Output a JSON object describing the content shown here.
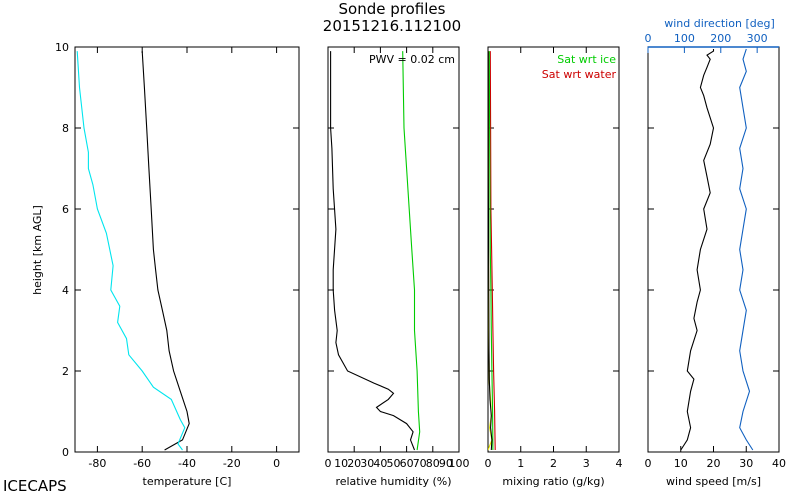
{
  "figure": {
    "title_line1": "Sonde profiles",
    "title_line2": "20151216.112100",
    "footer_label": "ICECAPS",
    "shared_ylabel": "height [km AGL]"
  },
  "chart_data": [
    {
      "type": "line",
      "xlabel": "temperature [C]",
      "ylabel": "height [km AGL]",
      "xlim": [
        -90,
        10
      ],
      "ylim": [
        0,
        10
      ],
      "xticks": [
        -80,
        -60,
        -40,
        -20,
        0
      ],
      "xtick_labels": [
        "-80",
        "-60",
        "-40",
        "-20",
        "0"
      ],
      "yticks": [
        0,
        2,
        4,
        6,
        8,
        10
      ],
      "ytick_labels": [
        "0",
        "2",
        "4",
        "6",
        "8",
        "10"
      ],
      "series": [
        {
          "color": "#000000",
          "x": [
            -50,
            -42,
            -39,
            -40,
            -43,
            -46,
            -48,
            -49,
            -51,
            -53,
            -54,
            -55,
            -56,
            -57,
            -58,
            -59,
            -60
          ],
          "y": [
            0.05,
            0.3,
            0.7,
            1.0,
            1.5,
            2.0,
            2.5,
            3.0,
            3.5,
            4.0,
            4.5,
            5.0,
            6.0,
            7.0,
            8.0,
            9.0,
            9.9
          ]
        },
        {
          "color": "#00e5ee",
          "x": [
            -42,
            -44,
            -41,
            -43,
            -47,
            -55,
            -60,
            -66,
            -67,
            -71,
            -70,
            -74,
            -73,
            -76,
            -80,
            -82,
            -84,
            -84,
            -86,
            -88,
            -89
          ],
          "y": [
            0.05,
            0.2,
            0.6,
            0.8,
            1.3,
            1.6,
            2.0,
            2.4,
            2.8,
            3.2,
            3.6,
            4.0,
            4.6,
            5.4,
            6.0,
            6.6,
            7.0,
            7.4,
            8.0,
            9.0,
            9.9
          ]
        }
      ]
    },
    {
      "type": "line",
      "xlabel": "relative humidity (%)",
      "xlim": [
        0,
        100
      ],
      "ylim": [
        0,
        10
      ],
      "xticks": [
        0,
        20,
        40,
        60,
        80,
        100
      ],
      "xtick_labels": [
        "0",
        "20",
        "40",
        "60",
        "80",
        "100"
      ],
      "x_minor_ticks": [
        10,
        30,
        50,
        70,
        90
      ],
      "minor_tick_labels": [
        "10",
        "30",
        "50",
        "70",
        "90"
      ],
      "yticks": [
        0,
        2,
        4,
        6,
        8,
        10
      ],
      "annotation": "PWV = 0.02 cm",
      "series": [
        {
          "color": "#000000",
          "x": [
            66,
            63,
            65,
            60,
            50,
            40,
            37,
            46,
            50,
            46,
            35,
            15,
            8,
            6,
            7,
            5,
            4,
            4,
            6,
            4,
            3,
            2,
            2,
            2
          ],
          "y": [
            0.05,
            0.3,
            0.5,
            0.7,
            0.9,
            1.0,
            1.1,
            1.3,
            1.45,
            1.55,
            1.7,
            2.0,
            2.4,
            2.7,
            3.0,
            3.5,
            4.0,
            4.5,
            5.5,
            6.5,
            7.5,
            8.0,
            9.0,
            9.9
          ]
        },
        {
          "color": "#00cc00",
          "x": [
            68,
            70,
            69,
            68,
            66,
            66,
            64,
            62,
            60,
            58,
            57
          ],
          "y": [
            0.05,
            0.5,
            1.0,
            2.0,
            3.0,
            4.0,
            5.0,
            6.0,
            7.0,
            8.0,
            9.9
          ]
        }
      ]
    },
    {
      "type": "line",
      "xlabel": "mixing ratio (g/kg)",
      "xlim": [
        0,
        4
      ],
      "ylim": [
        0,
        10
      ],
      "xticks": [
        0,
        1,
        2,
        3,
        4
      ],
      "xtick_labels": [
        "0",
        "1",
        "2",
        "3",
        "4"
      ],
      "yticks": [
        0,
        2,
        4,
        6,
        8,
        10
      ],
      "legend": [
        "Sat wrt ice",
        "Sat wrt water"
      ],
      "legend_colors": [
        "#00cc00",
        "#cc0000"
      ],
      "legend_position": "top-right",
      "series": [
        {
          "color": "#cc0000",
          "x": [
            0.22,
            0.2,
            0.17,
            0.15,
            0.13,
            0.11,
            0.09,
            0.08,
            0.07
          ],
          "y": [
            0.05,
            1.0,
            2.0,
            3.0,
            4.0,
            5.0,
            6.0,
            8.0,
            9.9
          ]
        },
        {
          "color": "#00cc00",
          "x": [
            0.15,
            0.14,
            0.12,
            0.1,
            0.09,
            0.07,
            0.06,
            0.05,
            0.04
          ],
          "y": [
            0.05,
            1.0,
            2.0,
            3.0,
            4.0,
            5.0,
            6.0,
            8.0,
            9.9
          ]
        },
        {
          "color": "#e5e500",
          "x": [
            0.0,
            0.12,
            0.05,
            0.1,
            0.08,
            0.04,
            0.02,
            0.01
          ],
          "y": [
            0.05,
            0.3,
            0.6,
            0.9,
            1.3,
            1.7,
            3.0,
            9.9
          ]
        },
        {
          "color": "#000000",
          "x": [
            0.1,
            0.12,
            0.08,
            0.1,
            0.06,
            0.04,
            0.03,
            0.02,
            0.01,
            0.01
          ],
          "y": [
            0.05,
            0.3,
            0.6,
            0.9,
            1.3,
            1.8,
            2.5,
            4.0,
            7.0,
            9.9
          ]
        }
      ]
    },
    {
      "type": "line",
      "xlabel": "wind speed [m/s]",
      "xlim": [
        0,
        40
      ],
      "ylim": [
        0,
        10
      ],
      "xticks": [
        0,
        10,
        20,
        30,
        40
      ],
      "xtick_labels": [
        "0",
        "10",
        "20",
        "30",
        "40"
      ],
      "yticks": [
        0,
        2,
        4,
        6,
        8,
        10
      ],
      "top_axis_label": "wind direction [deg]",
      "top_axis_color": "#1060c0",
      "top_xlim": [
        0,
        360
      ],
      "top_xticks": [
        0,
        100,
        200,
        300
      ],
      "top_xtick_labels": [
        "0",
        "100",
        "200",
        "300"
      ],
      "series": [
        {
          "color": "#000000",
          "x": [
            10,
            12,
            13,
            12,
            13,
            14,
            12,
            13,
            15,
            14,
            15,
            16,
            15,
            16,
            18,
            17,
            19,
            18,
            17,
            19,
            20,
            18,
            17,
            16,
            17,
            18,
            19,
            18,
            20,
            20
          ],
          "y": [
            0.05,
            0.3,
            0.6,
            1.0,
            1.5,
            1.8,
            2.0,
            2.5,
            3.0,
            3.3,
            3.7,
            4.0,
            4.5,
            5.0,
            5.5,
            6.0,
            6.4,
            6.8,
            7.2,
            7.6,
            8.0,
            8.5,
            8.8,
            9.0,
            9.3,
            9.5,
            9.7,
            9.8,
            9.9,
            9.95
          ]
        },
        {
          "color": "#1060c0",
          "x": [
            32,
            30,
            28,
            29,
            31,
            29,
            28,
            29,
            30,
            28,
            29,
            28,
            29,
            30,
            28,
            29,
            28,
            30,
            29,
            28,
            30,
            29,
            30
          ],
          "y": [
            0.05,
            0.3,
            0.6,
            1.0,
            1.5,
            2.0,
            2.5,
            3.0,
            3.5,
            4.0,
            4.5,
            5.0,
            5.5,
            6.0,
            6.5,
            7.0,
            7.5,
            8.0,
            8.5,
            9.0,
            9.4,
            9.7,
            9.95
          ]
        }
      ]
    }
  ]
}
